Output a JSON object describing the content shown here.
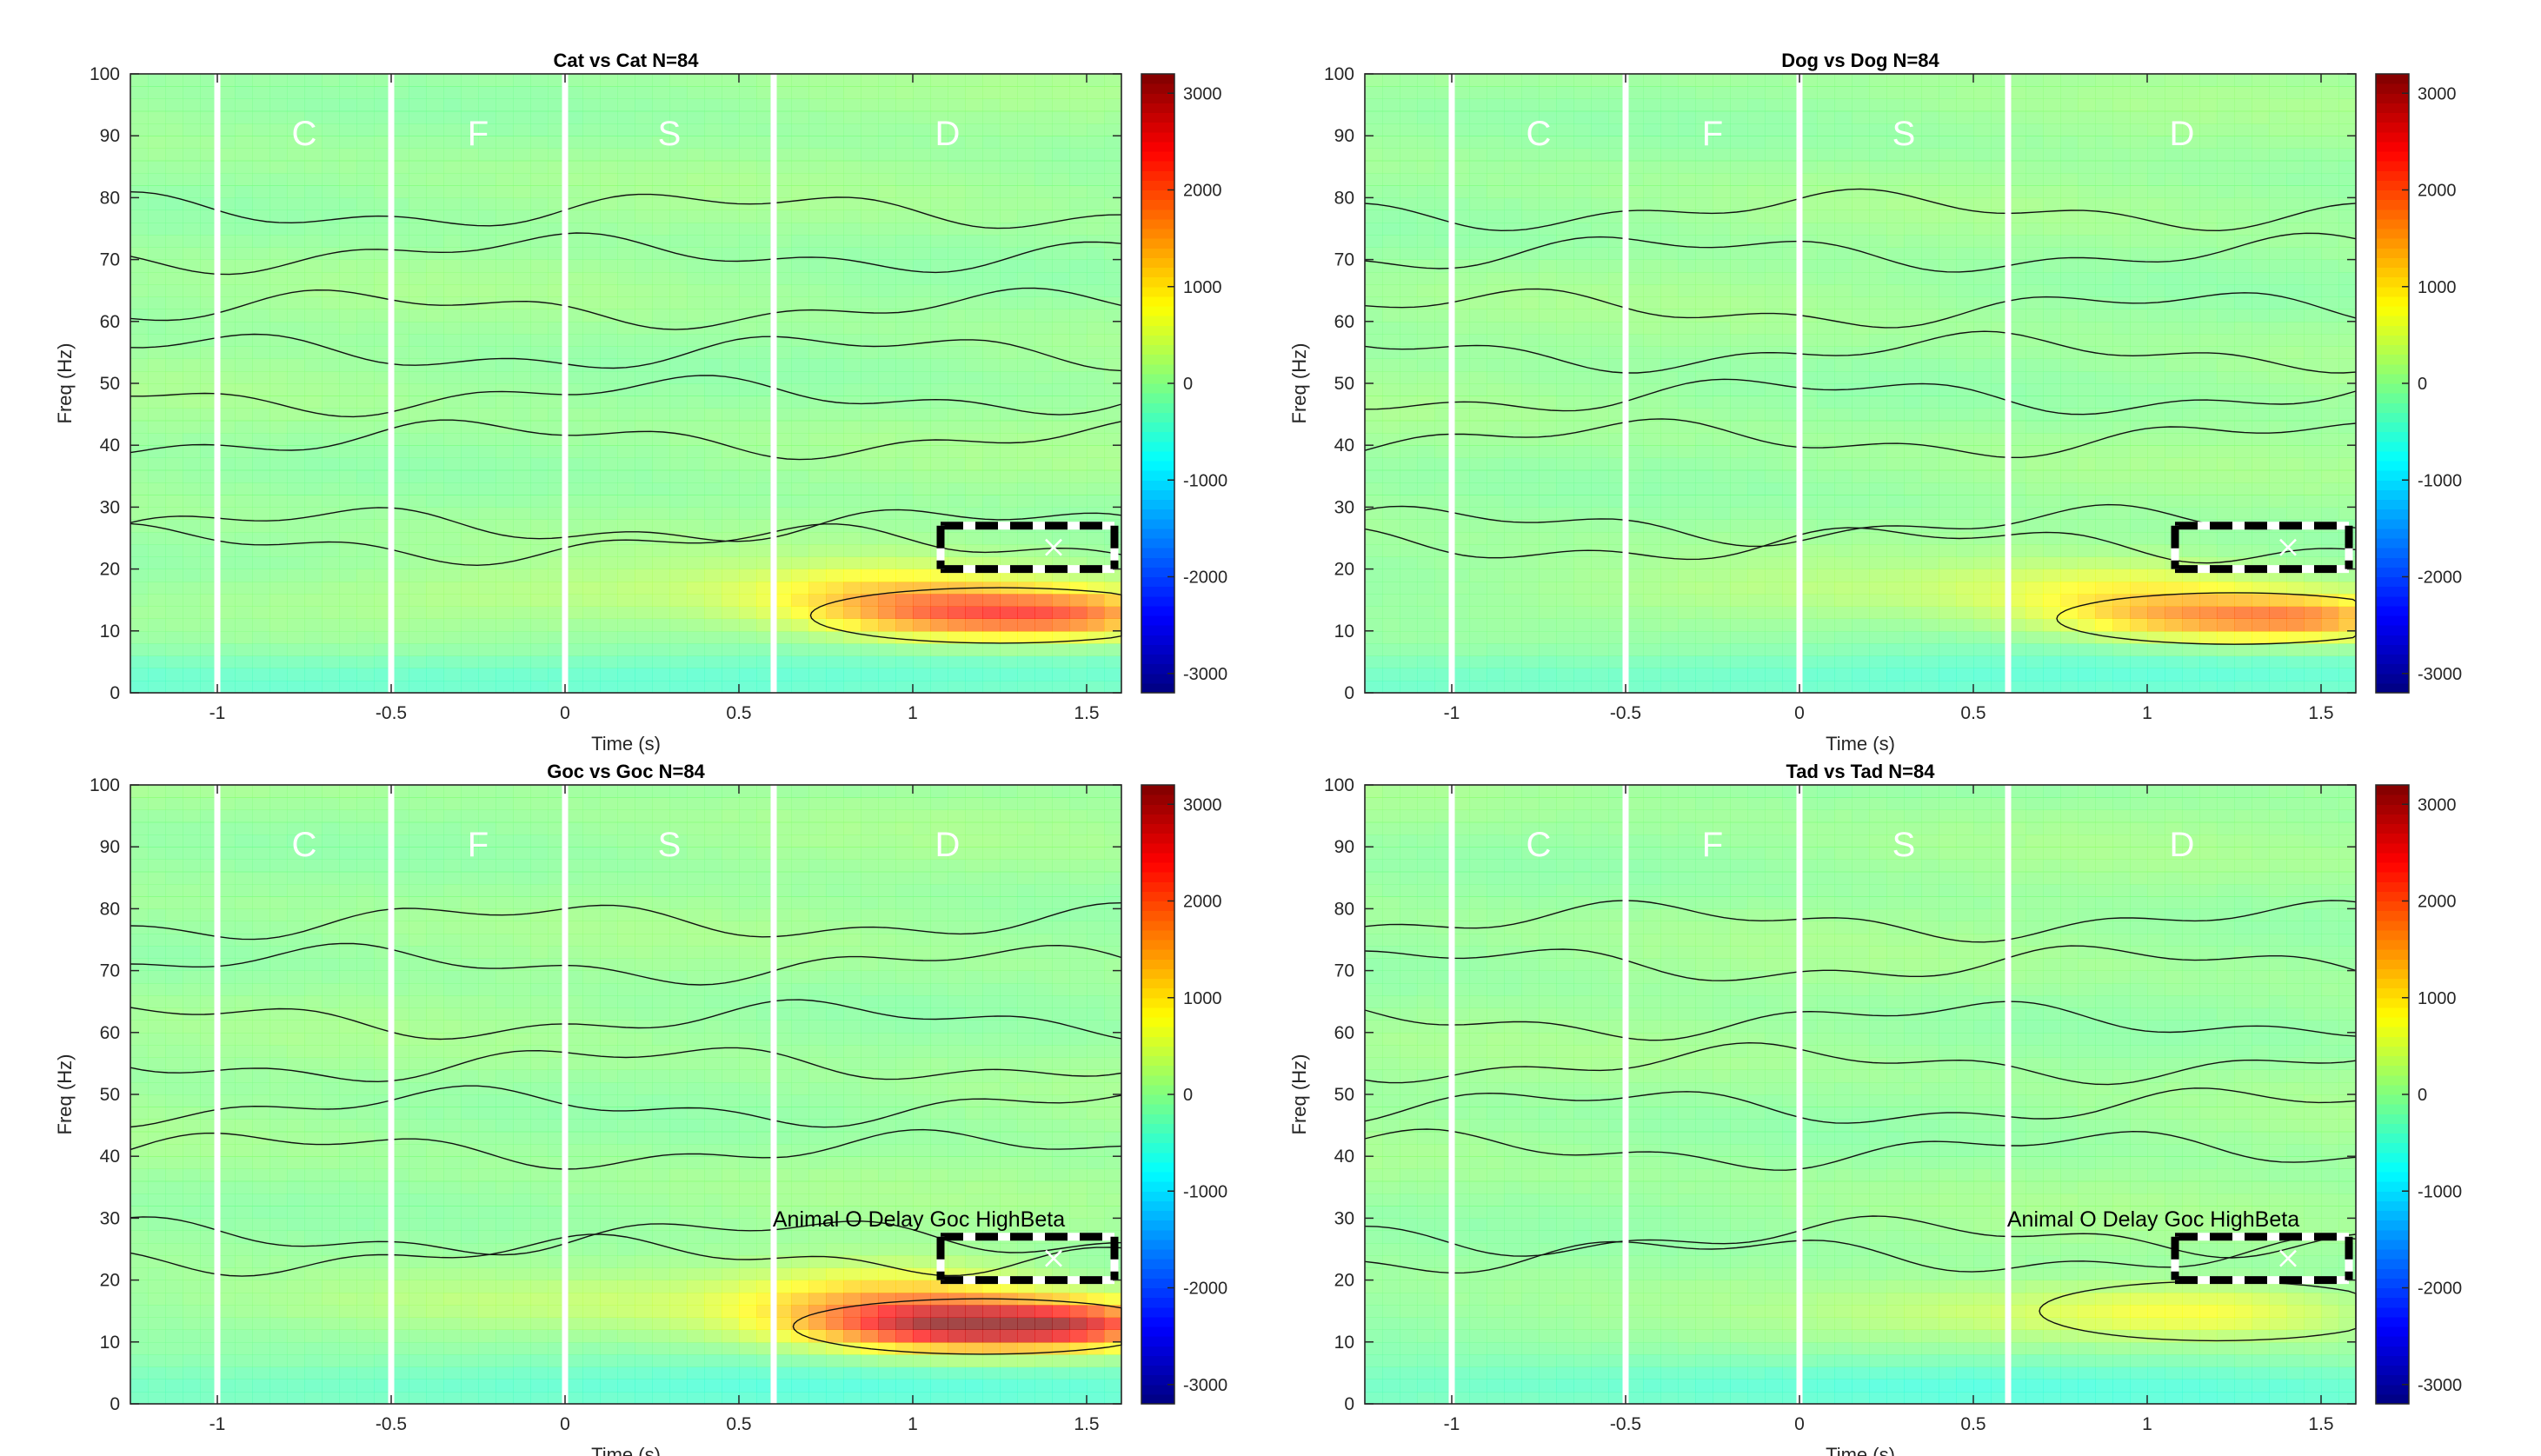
{
  "figure": {
    "background": "#ffffff"
  },
  "chart_data": [
    {
      "type": "heatmap",
      "title": "Cat vs Cat N=84",
      "xlabel": "Time (s)",
      "ylabel": "Freq (Hz)",
      "xlim": [
        -1.25,
        1.6
      ],
      "ylim": [
        0,
        100
      ],
      "xticks": [
        -1,
        -0.5,
        0,
        0.5,
        1,
        1.5
      ],
      "xtick_labels": [
        "-1",
        "-0.5",
        "0",
        "0.5",
        "1",
        "1.5"
      ],
      "yticks": [
        0,
        10,
        20,
        30,
        40,
        50,
        60,
        70,
        80,
        90,
        100
      ],
      "ytick_labels": [
        "0",
        "10",
        "20",
        "30",
        "40",
        "50",
        "60",
        "70",
        "80",
        "90",
        "100"
      ],
      "colorbar": {
        "range": [
          -3200,
          3200
        ],
        "ticks": [
          -3000,
          -2000,
          -1000,
          0,
          1000,
          2000,
          3000
        ],
        "tick_labels": [
          "-3000",
          "-2000",
          "-1000",
          "0",
          "1000",
          "2000",
          "3000"
        ],
        "colormap": "jet"
      },
      "epoch_lines": [
        -1,
        -0.5,
        0,
        0.6
      ],
      "epoch_labels": [
        {
          "text": "C",
          "x": -0.75,
          "y": 90
        },
        {
          "text": "F",
          "x": -0.25,
          "y": 90
        },
        {
          "text": "S",
          "x": 0.3,
          "y": 90
        },
        {
          "text": "D",
          "x": 1.1,
          "y": 90
        }
      ],
      "roi": {
        "x": [
          1.08,
          1.58
        ],
        "y": [
          20,
          27
        ],
        "label": ""
      },
      "blobs": [
        {
          "t": 1.25,
          "f": 12.5,
          "st": 0.32,
          "sf": 2.8,
          "amp": 1900
        },
        {
          "t": 1.5,
          "f": 12.5,
          "st": 0.15,
          "sf": 2.5,
          "amp": 500
        },
        {
          "t": 0.95,
          "f": 16,
          "st": 0.3,
          "sf": 3.5,
          "amp": 800
        },
        {
          "t": 0.3,
          "f": 16,
          "st": 1.0,
          "sf": 3.0,
          "amp": 250
        },
        {
          "t": 0.2,
          "f": 3,
          "st": 2.0,
          "sf": 3.0,
          "amp": -350
        }
      ]
    },
    {
      "type": "heatmap",
      "title": "Dog vs Dog N=84",
      "xlabel": "Time (s)",
      "ylabel": "Freq (Hz)",
      "xlim": [
        -1.25,
        1.6
      ],
      "ylim": [
        0,
        100
      ],
      "xticks": [
        -1,
        -0.5,
        0,
        0.5,
        1,
        1.5
      ],
      "xtick_labels": [
        "-1",
        "-0.5",
        "0",
        "0.5",
        "1",
        "1.5"
      ],
      "yticks": [
        0,
        10,
        20,
        30,
        40,
        50,
        60,
        70,
        80,
        90,
        100
      ],
      "ytick_labels": [
        "0",
        "10",
        "20",
        "30",
        "40",
        "50",
        "60",
        "70",
        "80",
        "90",
        "100"
      ],
      "colorbar": {
        "range": [
          -3200,
          3200
        ],
        "ticks": [
          -3000,
          -2000,
          -1000,
          0,
          1000,
          2000,
          3000
        ],
        "tick_labels": [
          "-3000",
          "-2000",
          "-1000",
          "0",
          "1000",
          "2000",
          "3000"
        ],
        "colormap": "jet"
      },
      "epoch_lines": [
        -1,
        -0.5,
        0,
        0.6
      ],
      "epoch_labels": [
        {
          "text": "C",
          "x": -0.75,
          "y": 90
        },
        {
          "text": "F",
          "x": -0.25,
          "y": 90
        },
        {
          "text": "S",
          "x": 0.3,
          "y": 90
        },
        {
          "text": "D",
          "x": 1.1,
          "y": 90
        }
      ],
      "roi": {
        "x": [
          1.08,
          1.58
        ],
        "y": [
          20,
          27
        ],
        "label": ""
      },
      "blobs": [
        {
          "t": 1.25,
          "f": 12,
          "st": 0.3,
          "sf": 2.6,
          "amp": 1500
        },
        {
          "t": 1.5,
          "f": 12,
          "st": 0.15,
          "sf": 2.5,
          "amp": 600
        },
        {
          "t": 0.95,
          "f": 16,
          "st": 0.3,
          "sf": 3.5,
          "amp": 600
        },
        {
          "t": 0.3,
          "f": 16,
          "st": 1.0,
          "sf": 3.0,
          "amp": 200
        },
        {
          "t": 0.2,
          "f": 3,
          "st": 2.0,
          "sf": 3.0,
          "amp": -350
        }
      ]
    },
    {
      "type": "heatmap",
      "title": "Goc vs Goc N=84",
      "xlabel": "Time (s)",
      "ylabel": "Freq (Hz)",
      "xlim": [
        -1.25,
        1.6
      ],
      "ylim": [
        0,
        100
      ],
      "xticks": [
        -1,
        -0.5,
        0,
        0.5,
        1,
        1.5
      ],
      "xtick_labels": [
        "-1",
        "-0.5",
        "0",
        "0.5",
        "1",
        "1.5"
      ],
      "yticks": [
        0,
        10,
        20,
        30,
        40,
        50,
        60,
        70,
        80,
        90,
        100
      ],
      "ytick_labels": [
        "0",
        "10",
        "20",
        "30",
        "40",
        "50",
        "60",
        "70",
        "80",
        "90",
        "100"
      ],
      "colorbar": {
        "range": [
          -3200,
          3200
        ],
        "ticks": [
          -3000,
          -2000,
          -1000,
          0,
          1000,
          2000,
          3000
        ],
        "tick_labels": [
          "-3000",
          "-2000",
          "-1000",
          "0",
          "1000",
          "2000",
          "3000"
        ],
        "colormap": "jet"
      },
      "epoch_lines": [
        -1,
        -0.5,
        0,
        0.6
      ],
      "epoch_labels": [
        {
          "text": "C",
          "x": -0.75,
          "y": 90
        },
        {
          "text": "F",
          "x": -0.25,
          "y": 90
        },
        {
          "text": "S",
          "x": 0.3,
          "y": 90
        },
        {
          "text": "D",
          "x": 1.1,
          "y": 90
        }
      ],
      "roi": {
        "x": [
          1.08,
          1.58
        ],
        "y": [
          20,
          27
        ],
        "label": "Animal O Delay Goc HighBeta"
      },
      "blobs": [
        {
          "t": 1.2,
          "f": 12.5,
          "st": 0.32,
          "sf": 2.8,
          "amp": 2800
        },
        {
          "t": 1.5,
          "f": 13,
          "st": 0.15,
          "sf": 2.5,
          "amp": 800
        },
        {
          "t": 0.95,
          "f": 17,
          "st": 0.3,
          "sf": 4.0,
          "amp": 1000
        },
        {
          "t": 0.3,
          "f": 16,
          "st": 1.0,
          "sf": 3.0,
          "amp": 250
        },
        {
          "t": 0.2,
          "f": 3,
          "st": 2.0,
          "sf": 3.0,
          "amp": -350
        }
      ]
    },
    {
      "type": "heatmap",
      "title": "Tad vs Tad N=84",
      "xlabel": "Time (s)",
      "ylabel": "Freq (Hz)",
      "xlim": [
        -1.25,
        1.6
      ],
      "ylim": [
        0,
        100
      ],
      "xticks": [
        -1,
        -0.5,
        0,
        0.5,
        1,
        1.5
      ],
      "xtick_labels": [
        "-1",
        "-0.5",
        "0",
        "0.5",
        "1",
        "1.5"
      ],
      "yticks": [
        0,
        10,
        20,
        30,
        40,
        50,
        60,
        70,
        80,
        90,
        100
      ],
      "ytick_labels": [
        "0",
        "10",
        "20",
        "30",
        "40",
        "50",
        "60",
        "70",
        "80",
        "90",
        "100"
      ],
      "colorbar": {
        "range": [
          -3200,
          3200
        ],
        "ticks": [
          -3000,
          -2000,
          -1000,
          0,
          1000,
          2000,
          3000
        ],
        "tick_labels": [
          "-3000",
          "-2000",
          "-1000",
          "0",
          "1000",
          "2000",
          "3000"
        ],
        "colormap": "jet"
      },
      "epoch_lines": [
        -1,
        -0.5,
        0,
        0.6
      ],
      "epoch_labels": [
        {
          "text": "C",
          "x": -0.75,
          "y": 90
        },
        {
          "text": "F",
          "x": -0.25,
          "y": 90
        },
        {
          "text": "S",
          "x": 0.3,
          "y": 90
        },
        {
          "text": "D",
          "x": 1.1,
          "y": 90
        }
      ],
      "roi": {
        "x": [
          1.08,
          1.58
        ],
        "y": [
          20,
          27
        ],
        "label": "Animal O Delay Goc HighBeta"
      },
      "blobs": [
        {
          "t": 1.2,
          "f": 15,
          "st": 0.3,
          "sf": 3.0,
          "amp": 650
        },
        {
          "t": 0.7,
          "f": 15,
          "st": 0.4,
          "sf": 3.0,
          "amp": 300
        },
        {
          "t": 0.2,
          "f": 3,
          "st": 2.0,
          "sf": 3.0,
          "amp": -350
        }
      ]
    }
  ]
}
